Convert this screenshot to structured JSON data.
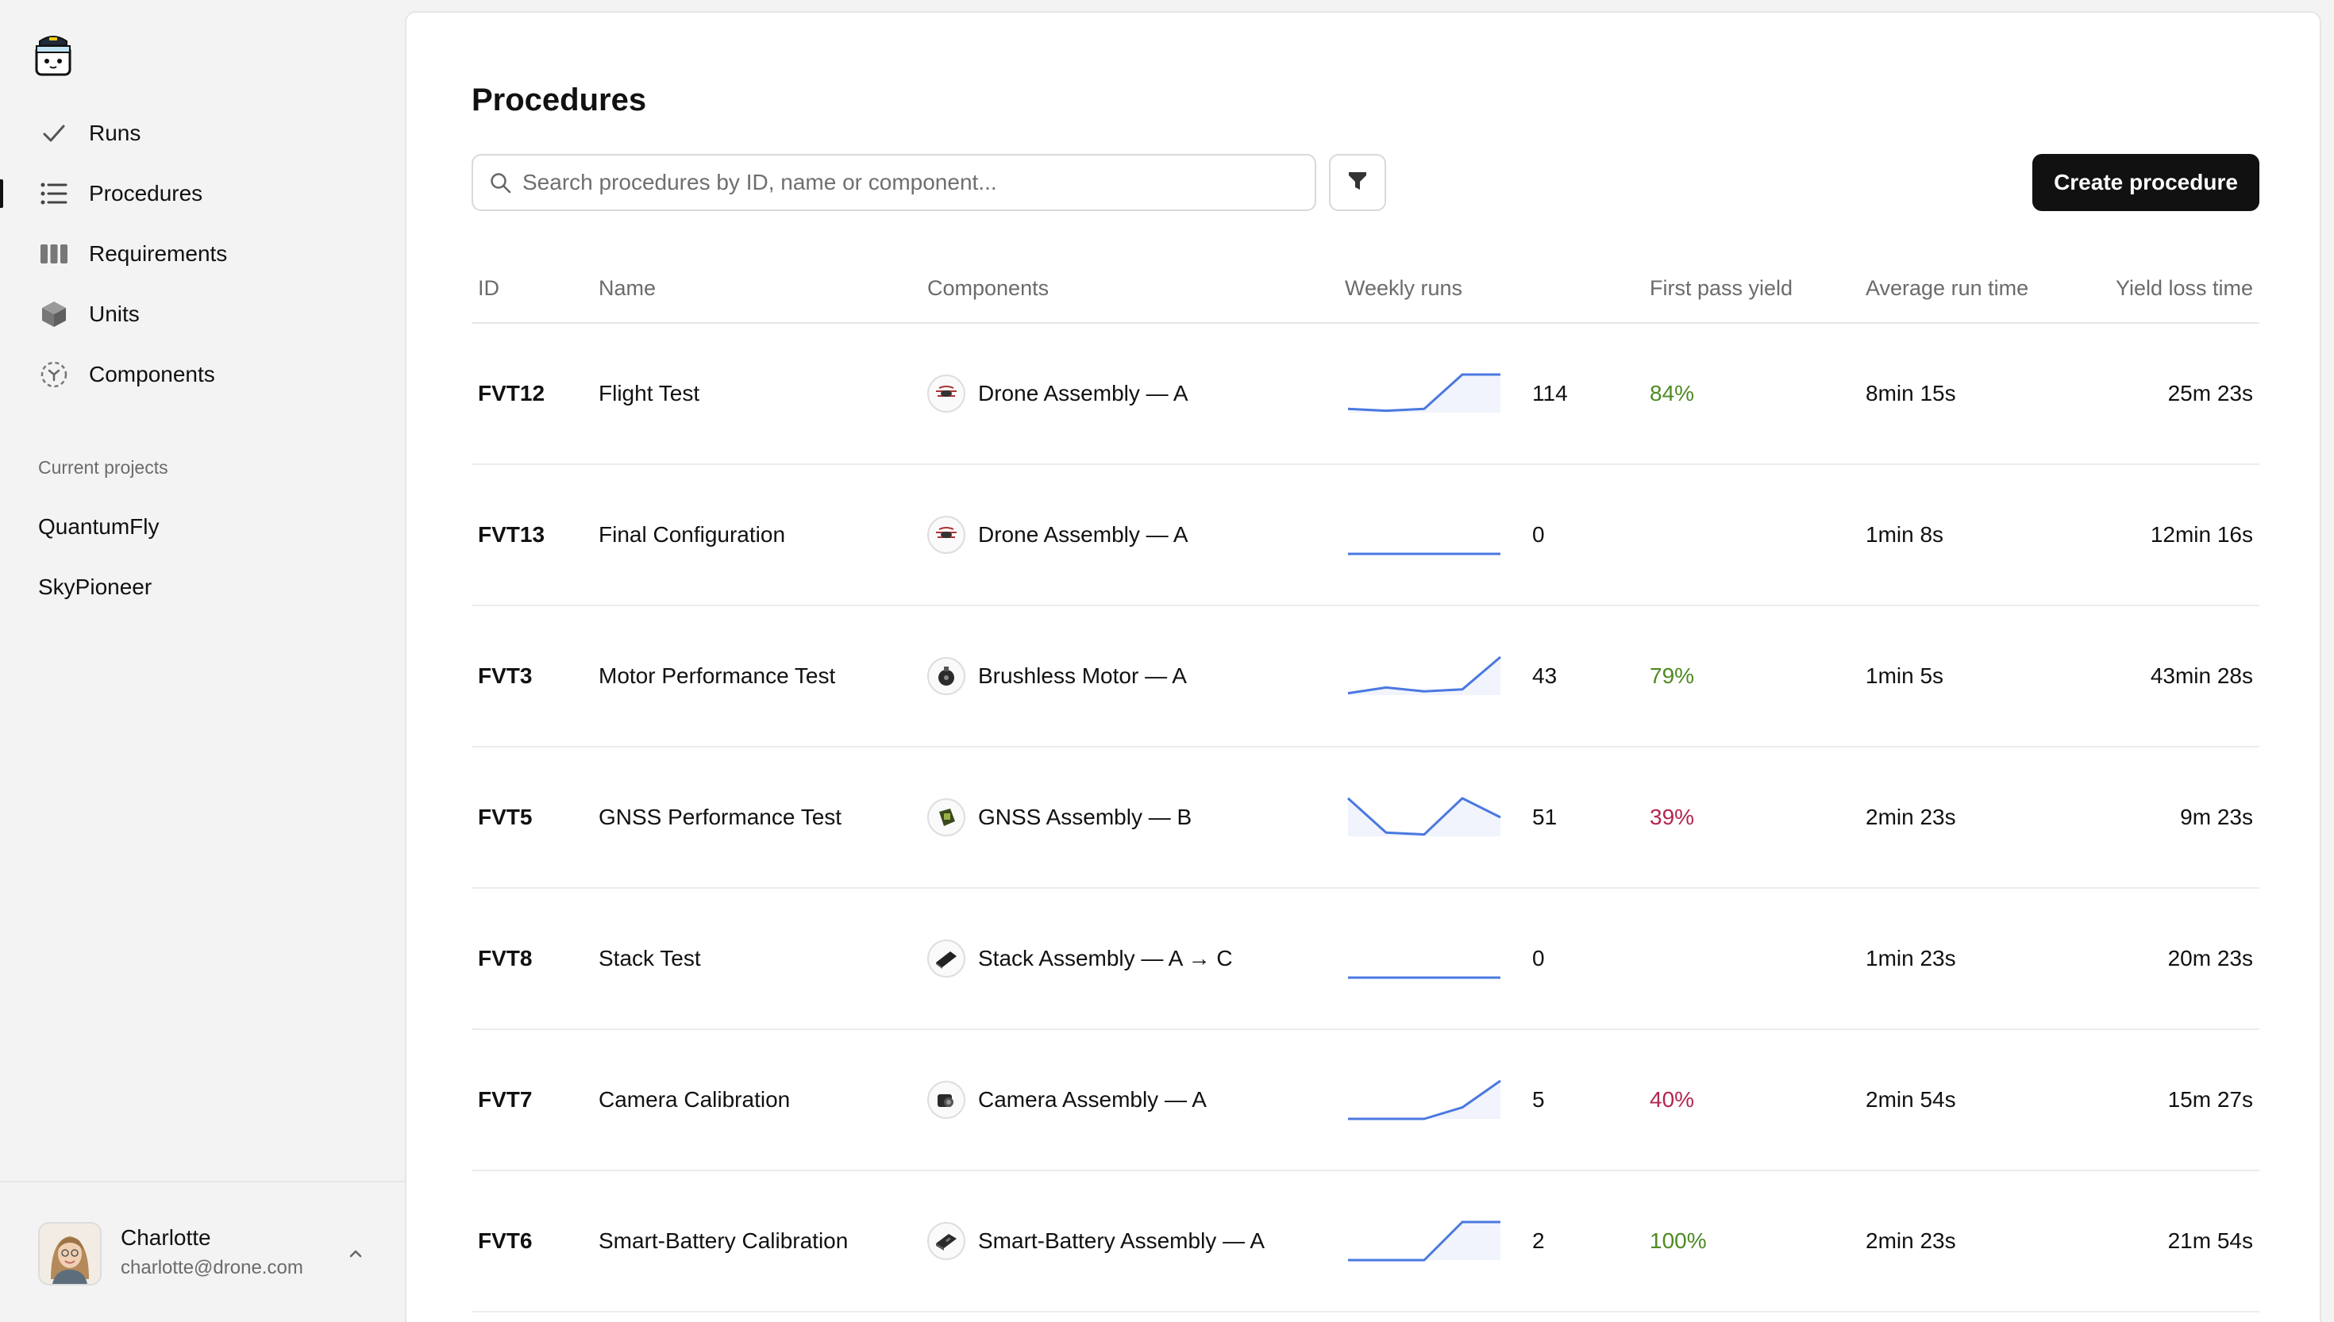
{
  "sidebar": {
    "nav": [
      {
        "label": "Runs",
        "icon": "check-icon",
        "active": false
      },
      {
        "label": "Procedures",
        "icon": "list-icon",
        "active": true
      },
      {
        "label": "Requirements",
        "icon": "columns-icon",
        "active": false
      },
      {
        "label": "Units",
        "icon": "cube-icon",
        "active": false
      },
      {
        "label": "Components",
        "icon": "component-icon",
        "active": false
      }
    ],
    "projects_title": "Current projects",
    "projects": [
      "QuantumFly",
      "SkyPioneer"
    ],
    "user": {
      "name": "Charlotte",
      "email": "charlotte@drone.com"
    }
  },
  "main": {
    "title": "Procedures",
    "search_placeholder": "Search procedures by ID, name or component...",
    "create_label": "Create procedure"
  },
  "table": {
    "headers": {
      "id": "ID",
      "name": "Name",
      "components": "Components",
      "weekly_runs": "Weekly runs",
      "first_pass_yield": "First pass yield",
      "average_run_time": "Average run time",
      "yield_loss_time": "Yield loss time"
    },
    "rows": [
      {
        "id": "FVT12",
        "name": "Flight Test",
        "component": "Drone Assembly — A",
        "component_icon": "drone-icon",
        "weekly_runs": "114",
        "trend": [
          0.1,
          0.05,
          0.1,
          1,
          1
        ],
        "fpy": "84%",
        "fpy_status": "good",
        "avg": "8min 15s",
        "loss": "25m 23s"
      },
      {
        "id": "FVT13",
        "name": "Final Configuration",
        "component": "Drone Assembly — A",
        "component_icon": "drone-icon",
        "weekly_runs": "0",
        "trend": [
          0,
          0,
          0,
          0,
          0
        ],
        "fpy": "",
        "fpy_status": "none",
        "avg": "1min 8s",
        "loss": "12min 16s"
      },
      {
        "id": "FVT3",
        "name": "Motor Performance Test",
        "component": "Brushless Motor — A",
        "component_icon": "motor-icon",
        "weekly_runs": "43",
        "trend": [
          0.05,
          0.2,
          0.1,
          0.15,
          1
        ],
        "fpy": "79%",
        "fpy_status": "good",
        "avg": "1min 5s",
        "loss": "43min 28s"
      },
      {
        "id": "FVT5",
        "name": "GNSS Performance Test",
        "component": "GNSS Assembly — B",
        "component_icon": "gnss-icon",
        "weekly_runs": "51",
        "trend": [
          1,
          0.1,
          0.05,
          1,
          0.5
        ],
        "fpy": "39%",
        "fpy_status": "bad",
        "avg": "2min 23s",
        "loss": "9m 23s"
      },
      {
        "id": "FVT8",
        "name": "Stack Test",
        "component": "Stack Assembly — A → C",
        "component_icon": "stack-icon",
        "weekly_runs": "0",
        "trend": [
          0,
          0,
          0,
          0,
          0
        ],
        "fpy": "",
        "fpy_status": "none",
        "avg": "1min 23s",
        "loss": "20m 23s"
      },
      {
        "id": "FVT7",
        "name": "Camera Calibration",
        "component": "Camera Assembly — A",
        "component_icon": "camera-icon",
        "weekly_runs": "5",
        "trend": [
          0,
          0,
          0,
          0.3,
          1
        ],
        "fpy": "40%",
        "fpy_status": "bad",
        "avg": "2min 54s",
        "loss": "15m 27s"
      },
      {
        "id": "FVT6",
        "name": "Smart-Battery Calibration",
        "component": "Smart-Battery Assembly — A",
        "component_icon": "battery-icon",
        "weekly_runs": "2",
        "trend": [
          0,
          0,
          0,
          1,
          1
        ],
        "fpy": "100%",
        "fpy_status": "good",
        "avg": "2min 23s",
        "loss": "21m 54s"
      }
    ]
  },
  "colors": {
    "accent": "#4a78e0",
    "good": "#4e8a22",
    "bad": "#b3264f"
  }
}
